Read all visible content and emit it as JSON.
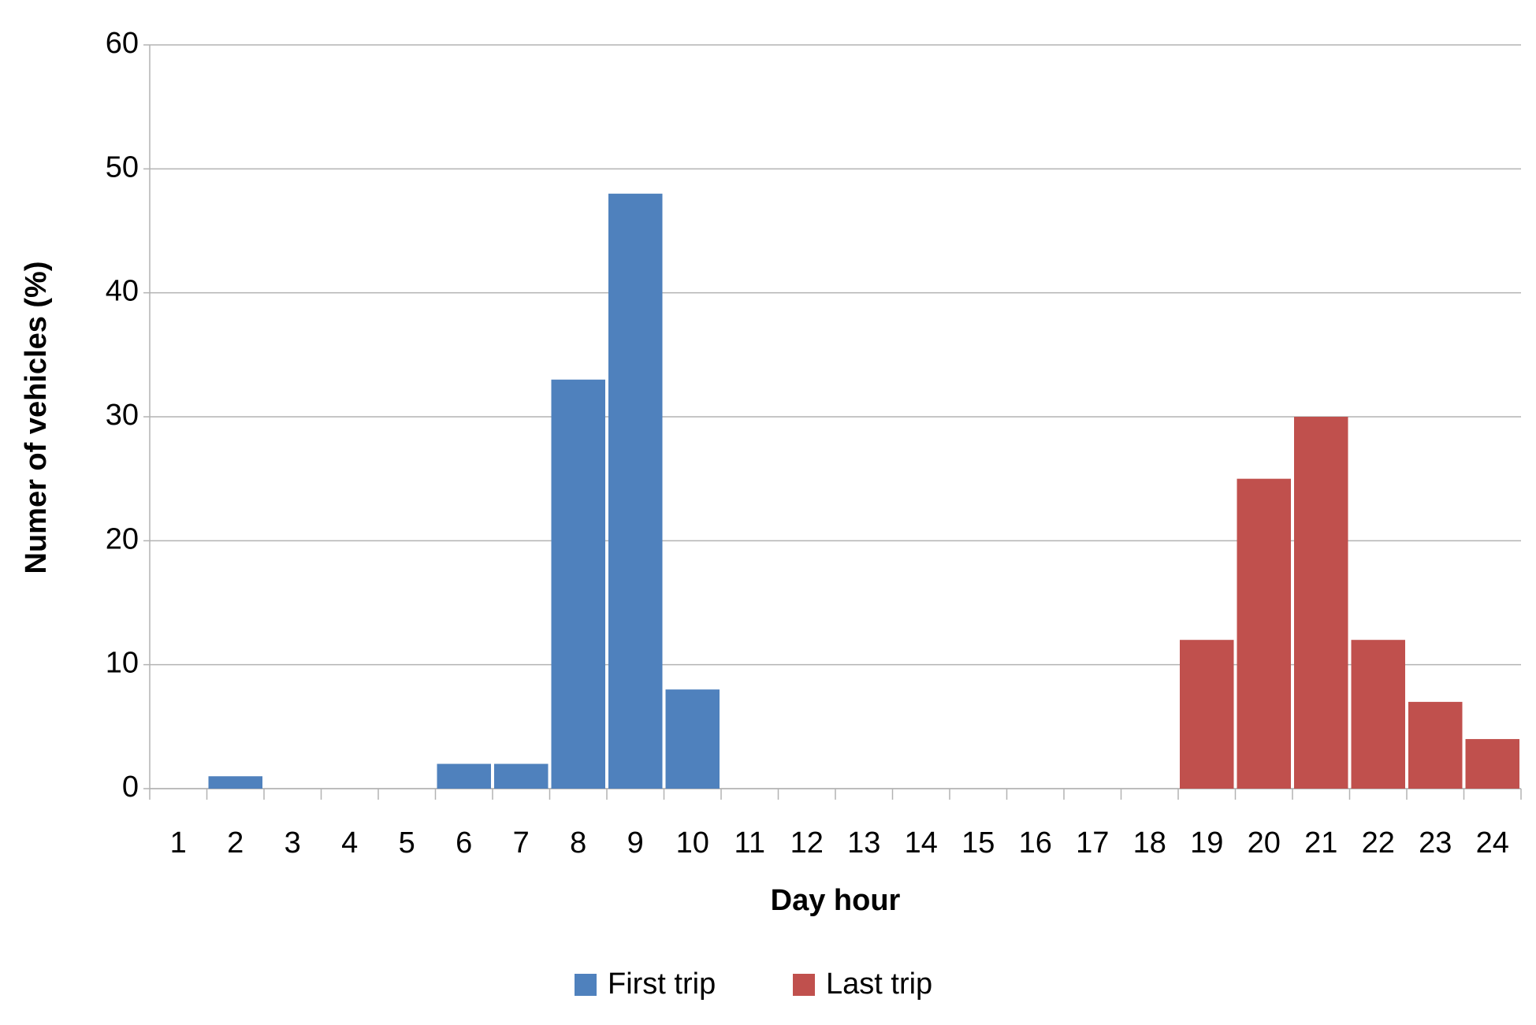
{
  "chart_data": {
    "type": "bar",
    "x_label": "Day hour",
    "y_label": "Numer of vehicles (%)",
    "categories": [
      "1",
      "2",
      "3",
      "4",
      "5",
      "6",
      "7",
      "8",
      "9",
      "10",
      "11",
      "12",
      "13",
      "14",
      "15",
      "16",
      "17",
      "18",
      "19",
      "20",
      "21",
      "22",
      "23",
      "24"
    ],
    "series": [
      {
        "name": "First trip",
        "color": "#4f81bd",
        "values": [
          0,
          1,
          0,
          0,
          0,
          2,
          2,
          33,
          48,
          8,
          0,
          0,
          0,
          0,
          0,
          0,
          0,
          0,
          0,
          0,
          0,
          0,
          0,
          0
        ]
      },
      {
        "name": "Last trip",
        "color": "#c0504d",
        "values": [
          0,
          0,
          0,
          0,
          0,
          0,
          0,
          0,
          0,
          0,
          0,
          0,
          0,
          0,
          0,
          0,
          0,
          0,
          12,
          25,
          30,
          12,
          7,
          4
        ]
      }
    ],
    "ylim": [
      0,
      60
    ],
    "yticks": [
      0,
      10,
      20,
      30,
      40,
      50,
      60
    ],
    "grid": true,
    "legend": "bottom"
  }
}
